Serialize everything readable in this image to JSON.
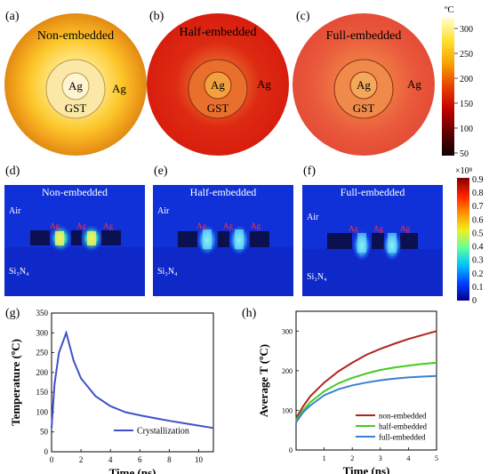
{
  "panels": {
    "a": {
      "letter": "(a)",
      "title": "Non-embedded",
      "outer_label": "Ag",
      "core_label": "Ag",
      "ring_label": "GST"
    },
    "b": {
      "letter": "(b)",
      "title": "Half-embedded",
      "outer_label": "Ag",
      "core_label": "Ag",
      "ring_label": "GST"
    },
    "c": {
      "letter": "(c)",
      "title": "Full-embedded",
      "outer_label": "Ag",
      "core_label": "Ag",
      "ring_label": "GST"
    },
    "d": {
      "letter": "(d)",
      "title": "Non-embedded",
      "air": "Air",
      "substrate": "Si₃N₄",
      "ag1": "Ag",
      "ag2": "Ag",
      "ag3": "Ag"
    },
    "e": {
      "letter": "(e)",
      "title": "Half-embedded",
      "air": "Air",
      "substrate": "Si₃N₄",
      "ag1": "Ag",
      "ag2": "Ag",
      "ag3": "Ag"
    },
    "f": {
      "letter": "(f)",
      "title": "Full-embedded",
      "air": "Air",
      "substrate": "Si₃N₄",
      "ag1": "Ag",
      "ag2": "Ag",
      "ag3": "Ag"
    },
    "g": {
      "letter": "(g)"
    },
    "h": {
      "letter": "(h)"
    }
  },
  "colorbar_top": {
    "unit": "ºC",
    "ticks": [
      "300",
      "250",
      "200",
      "150",
      "100",
      "50"
    ],
    "colors": [
      "#ffffd0",
      "#ffe030",
      "#f8a000",
      "#e84000",
      "#c00000",
      "#600000",
      "#100000"
    ]
  },
  "colorbar_mid": {
    "unit": "×10⁸",
    "ticks": [
      "0.9",
      "0.8",
      "0.7",
      "0.6",
      "0.5",
      "0.4",
      "0.3",
      "0.2",
      "0.1",
      "0"
    ],
    "colors": [
      "#800000",
      "#ff2000",
      "#ff9000",
      "#f0f020",
      "#60ffa0",
      "#00c0ff",
      "#0040ff",
      "#000090"
    ]
  },
  "chart_data": [
    {
      "panel": "g",
      "type": "line",
      "xlabel": "Time (ns)",
      "ylabel": "Temperature (ºC)",
      "xlim": [
        0,
        11
      ],
      "ylim": [
        0,
        350
      ],
      "xticks": [
        0,
        2,
        4,
        6,
        8,
        10
      ],
      "yticks": [
        0,
        50,
        100,
        150,
        200,
        250,
        300,
        350
      ],
      "legend_position": "bottom-right",
      "series": [
        {
          "name": "Crystallization",
          "color": "#3f51c8",
          "x": [
            0,
            0.2,
            0.5,
            1.0,
            1.5,
            2,
            3,
            4,
            5,
            6,
            7,
            8,
            9,
            10,
            11
          ],
          "y": [
            60,
            170,
            250,
            300,
            230,
            185,
            140,
            115,
            100,
            92,
            85,
            78,
            72,
            66,
            60
          ]
        }
      ]
    },
    {
      "panel": "h",
      "type": "line",
      "xlabel": "Time (ns)",
      "ylabel": "Average T (ºC)",
      "xlim": [
        0,
        5
      ],
      "ylim": [
        0,
        350
      ],
      "xticks": [
        1,
        2,
        3,
        4,
        5
      ],
      "yticks": [
        0,
        100,
        200,
        300
      ],
      "legend_position": "bottom-right",
      "series": [
        {
          "name": "non-embedded",
          "color": "#b22222",
          "x": [
            0,
            0.25,
            0.5,
            1,
            1.5,
            2,
            2.5,
            3,
            3.5,
            4,
            4.5,
            5
          ],
          "y": [
            80,
            110,
            135,
            170,
            198,
            220,
            240,
            255,
            268,
            280,
            290,
            300
          ]
        },
        {
          "name": "half-embedded",
          "color": "#44cc22",
          "x": [
            0,
            0.25,
            0.5,
            1,
            1.5,
            2,
            2.5,
            3,
            3.5,
            4,
            4.5,
            5
          ],
          "y": [
            75,
            100,
            120,
            148,
            168,
            182,
            193,
            202,
            208,
            213,
            217,
            220
          ]
        },
        {
          "name": "full-embedded",
          "color": "#3a7fd5",
          "x": [
            0,
            0.25,
            0.5,
            1,
            1.5,
            2,
            2.5,
            3,
            3.5,
            4,
            4.5,
            5
          ],
          "y": [
            70,
            95,
            112,
            138,
            153,
            163,
            170,
            176,
            180,
            183,
            185,
            187
          ]
        }
      ]
    }
  ]
}
